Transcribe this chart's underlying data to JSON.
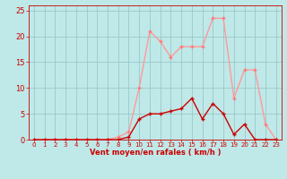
{
  "x": [
    0,
    1,
    2,
    3,
    4,
    5,
    6,
    7,
    8,
    9,
    10,
    11,
    12,
    13,
    14,
    15,
    16,
    17,
    18,
    19,
    20,
    21,
    22,
    23
  ],
  "y_moyen": [
    0,
    0,
    0,
    0,
    0,
    0,
    0,
    0,
    0,
    0.5,
    4,
    5,
    5,
    5.5,
    6,
    8,
    4,
    7,
    5,
    1,
    3,
    0,
    0,
    0
  ],
  "y_rafales": [
    0,
    0,
    0,
    0,
    0,
    0,
    0,
    0,
    0.5,
    1.5,
    10,
    21,
    19,
    16,
    18,
    18,
    18,
    23.5,
    23.5,
    8,
    13.5,
    13.5,
    3,
    0
  ],
  "xlabel": "Vent moyen/en rafales ( km/h )",
  "ylim": [
    0,
    26
  ],
  "xlim": [
    -0.5,
    23.5
  ],
  "yticks": [
    0,
    5,
    10,
    15,
    20,
    25
  ],
  "xticks": [
    0,
    1,
    2,
    3,
    4,
    5,
    6,
    7,
    8,
    9,
    10,
    11,
    12,
    13,
    14,
    15,
    16,
    17,
    18,
    19,
    20,
    21,
    22,
    23
  ],
  "bg_color": "#bfe8e8",
  "grid_color": "#9ac8c8",
  "line_color_moyen": "#cc0000",
  "line_color_rafales": "#ff9999",
  "marker_color_moyen": "#cc0000",
  "marker_color_rafales": "#ff7777",
  "xlabel_color": "#cc0000",
  "tick_color": "#cc0000",
  "spine_color": "#cc0000",
  "ytick_fontsize": 6,
  "xtick_fontsize": 5,
  "xlabel_fontsize": 6,
  "linewidth": 1.0,
  "markersize": 2.5
}
